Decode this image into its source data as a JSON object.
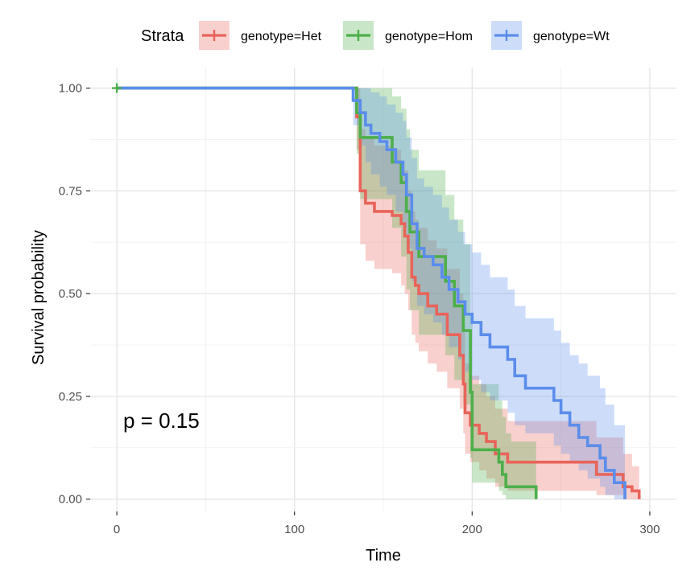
{
  "chart_data": {
    "type": "line",
    "subtype": "kaplan-meier",
    "title": "",
    "xlabel": "Time",
    "ylabel": "Survival probability",
    "xlim": [
      -15,
      315
    ],
    "ylim": [
      -0.03,
      1.05
    ],
    "x_ticks": [
      0,
      100,
      200,
      300
    ],
    "y_ticks": [
      0.0,
      0.25,
      0.5,
      0.75,
      1.0
    ],
    "x_tick_labels": [
      "0",
      "100",
      "200",
      "300"
    ],
    "y_tick_labels": [
      "0.00",
      "0.25",
      "0.50",
      "0.75",
      "1.00"
    ],
    "grid": true,
    "legend_title": "Strata",
    "legend_position": "top",
    "annotation": "p = 0.15",
    "series": [
      {
        "name": "genotype=Het",
        "color": "#E8645A",
        "x": [
          0,
          134,
          135,
          137,
          140,
          145,
          155,
          160,
          162,
          164,
          166,
          168,
          170,
          175,
          180,
          186,
          190,
          193,
          195,
          196,
          199,
          204,
          208,
          213,
          220,
          236,
          270,
          285,
          290,
          294
        ],
        "y": [
          1.0,
          1.0,
          0.93,
          0.75,
          0.72,
          0.7,
          0.69,
          0.67,
          0.64,
          0.6,
          0.54,
          0.52,
          0.5,
          0.47,
          0.45,
          0.4,
          0.4,
          0.35,
          0.28,
          0.21,
          0.18,
          0.16,
          0.14,
          0.11,
          0.09,
          0.09,
          0.06,
          0.03,
          0.02,
          0.0
        ],
        "upper": [
          1.0,
          1.0,
          1.0,
          0.9,
          0.88,
          0.86,
          0.85,
          0.82,
          0.8,
          0.75,
          0.7,
          0.68,
          0.66,
          0.63,
          0.61,
          0.56,
          0.56,
          0.5,
          0.42,
          0.33,
          0.3,
          0.28,
          0.25,
          0.22,
          0.19,
          0.19,
          0.15,
          0.11,
          0.08,
          0.0
        ],
        "lower": [
          1.0,
          1.0,
          0.85,
          0.62,
          0.58,
          0.56,
          0.55,
          0.52,
          0.5,
          0.46,
          0.4,
          0.38,
          0.36,
          0.33,
          0.31,
          0.27,
          0.27,
          0.22,
          0.16,
          0.11,
          0.09,
          0.07,
          0.05,
          0.03,
          0.02,
          0.02,
          0.01,
          0.0,
          0.0,
          0.0
        ]
      },
      {
        "name": "genotype=Hom",
        "color": "#4DAF4A",
        "x": [
          0,
          133,
          135,
          137,
          150,
          155,
          160,
          163,
          165,
          170,
          178,
          185,
          190,
          195,
          199,
          200,
          208,
          215,
          217,
          219,
          222,
          236
        ],
        "y": [
          1.0,
          1.0,
          0.94,
          0.88,
          0.88,
          0.82,
          0.77,
          0.7,
          0.65,
          0.59,
          0.59,
          0.53,
          0.47,
          0.41,
          0.26,
          0.12,
          0.12,
          0.09,
          0.06,
          0.03,
          0.03,
          0.0
        ],
        "upper": [
          1.0,
          1.0,
          1.0,
          1.0,
          1.0,
          0.98,
          0.95,
          0.9,
          0.85,
          0.8,
          0.8,
          0.74,
          0.68,
          0.62,
          0.45,
          0.28,
          0.28,
          0.24,
          0.2,
          0.16,
          0.14,
          0.0
        ],
        "lower": [
          1.0,
          1.0,
          0.84,
          0.73,
          0.73,
          0.66,
          0.59,
          0.51,
          0.46,
          0.4,
          0.4,
          0.35,
          0.29,
          0.23,
          0.1,
          0.04,
          0.04,
          0.02,
          0.01,
          0.0,
          0.0,
          0.0
        ]
      },
      {
        "name": "genotype=Wt",
        "color": "#5B8DEB",
        "x": [
          0,
          130,
          133,
          137,
          140,
          143,
          148,
          152,
          157,
          161,
          163,
          166,
          169,
          173,
          178,
          183,
          187,
          192,
          196,
          200,
          205,
          210,
          220,
          224,
          230,
          236,
          246,
          250,
          255,
          260,
          265,
          272,
          275,
          280,
          286
        ],
        "y": [
          1.0,
          1.0,
          0.97,
          0.94,
          0.91,
          0.89,
          0.87,
          0.85,
          0.82,
          0.79,
          0.74,
          0.67,
          0.61,
          0.59,
          0.57,
          0.54,
          0.51,
          0.48,
          0.45,
          0.43,
          0.4,
          0.37,
          0.34,
          0.3,
          0.27,
          0.27,
          0.24,
          0.21,
          0.18,
          0.15,
          0.13,
          0.1,
          0.07,
          0.04,
          0.0
        ],
        "upper": [
          1.0,
          1.0,
          1.0,
          1.0,
          1.0,
          0.99,
          0.98,
          0.96,
          0.94,
          0.92,
          0.88,
          0.83,
          0.78,
          0.76,
          0.74,
          0.71,
          0.68,
          0.65,
          0.62,
          0.6,
          0.57,
          0.54,
          0.51,
          0.47,
          0.44,
          0.44,
          0.41,
          0.38,
          0.35,
          0.33,
          0.3,
          0.27,
          0.23,
          0.18,
          0.0
        ],
        "lower": [
          1.0,
          1.0,
          0.91,
          0.86,
          0.82,
          0.79,
          0.76,
          0.74,
          0.7,
          0.66,
          0.61,
          0.53,
          0.47,
          0.45,
          0.43,
          0.4,
          0.37,
          0.34,
          0.31,
          0.29,
          0.26,
          0.24,
          0.21,
          0.18,
          0.16,
          0.16,
          0.13,
          0.11,
          0.09,
          0.07,
          0.05,
          0.03,
          0.01,
          0.0,
          0.0
        ]
      }
    ]
  }
}
